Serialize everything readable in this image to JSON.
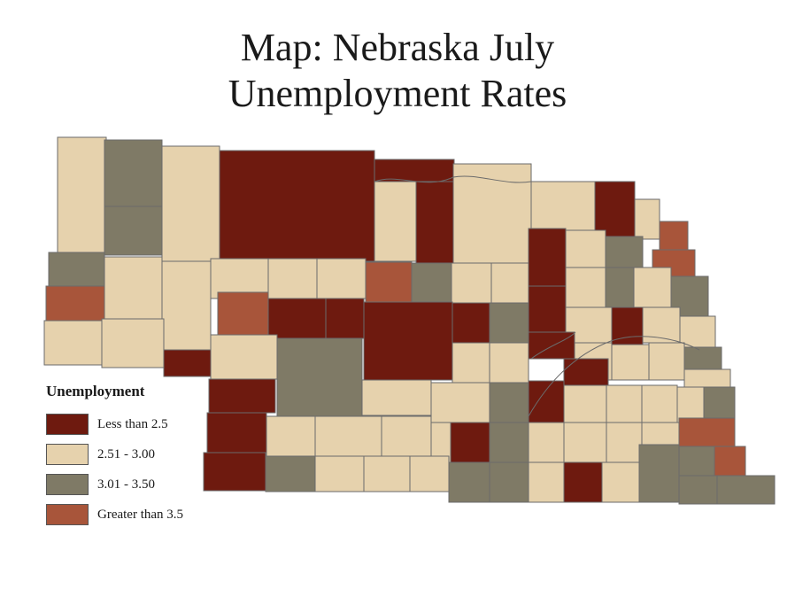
{
  "title": {
    "line1": "Map: Nebraska July",
    "line2": "Unemployment Rates"
  },
  "legend": {
    "heading": "Unemployment",
    "items": [
      {
        "label": "Less than 2.5",
        "color": "#6e1a0f"
      },
      {
        "label": "2.51 - 3.00",
        "color": "#e6d2ad"
      },
      {
        "label": "3.01 - 3.50",
        "color": "#7f7a66"
      },
      {
        "label": "Greater than 3.5",
        "color": "#a8553a"
      }
    ]
  },
  "border_color": "#6b6b6b"
}
